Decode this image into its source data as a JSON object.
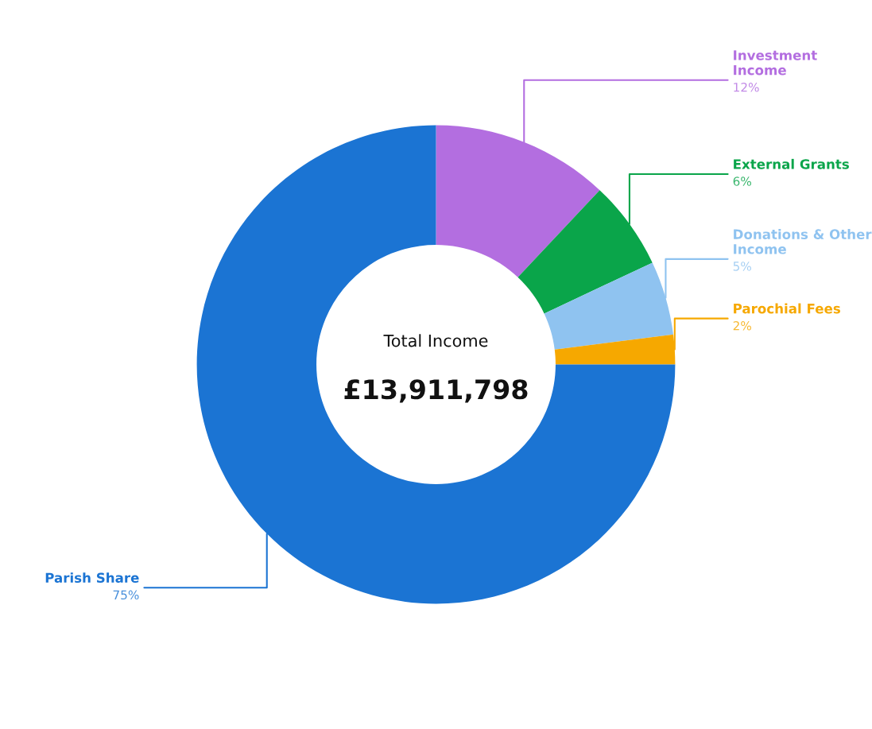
{
  "chart_data": {
    "type": "donut",
    "categories": [
      "Investment Income",
      "External Grants",
      "Donations & Other Income",
      "Parochial Fees",
      "Parish Share"
    ],
    "values": [
      12,
      6,
      5,
      2,
      75
    ],
    "value_labels": [
      "12%",
      "6%",
      "5%",
      "2%",
      "75%"
    ],
    "colors": [
      "#b36ee0",
      "#0aa54a",
      "#8fc3f0",
      "#f6a800",
      "#1b74d3"
    ],
    "annotations": [
      "Total Income",
      "£13,911,798"
    ],
    "legend": false
  }
}
